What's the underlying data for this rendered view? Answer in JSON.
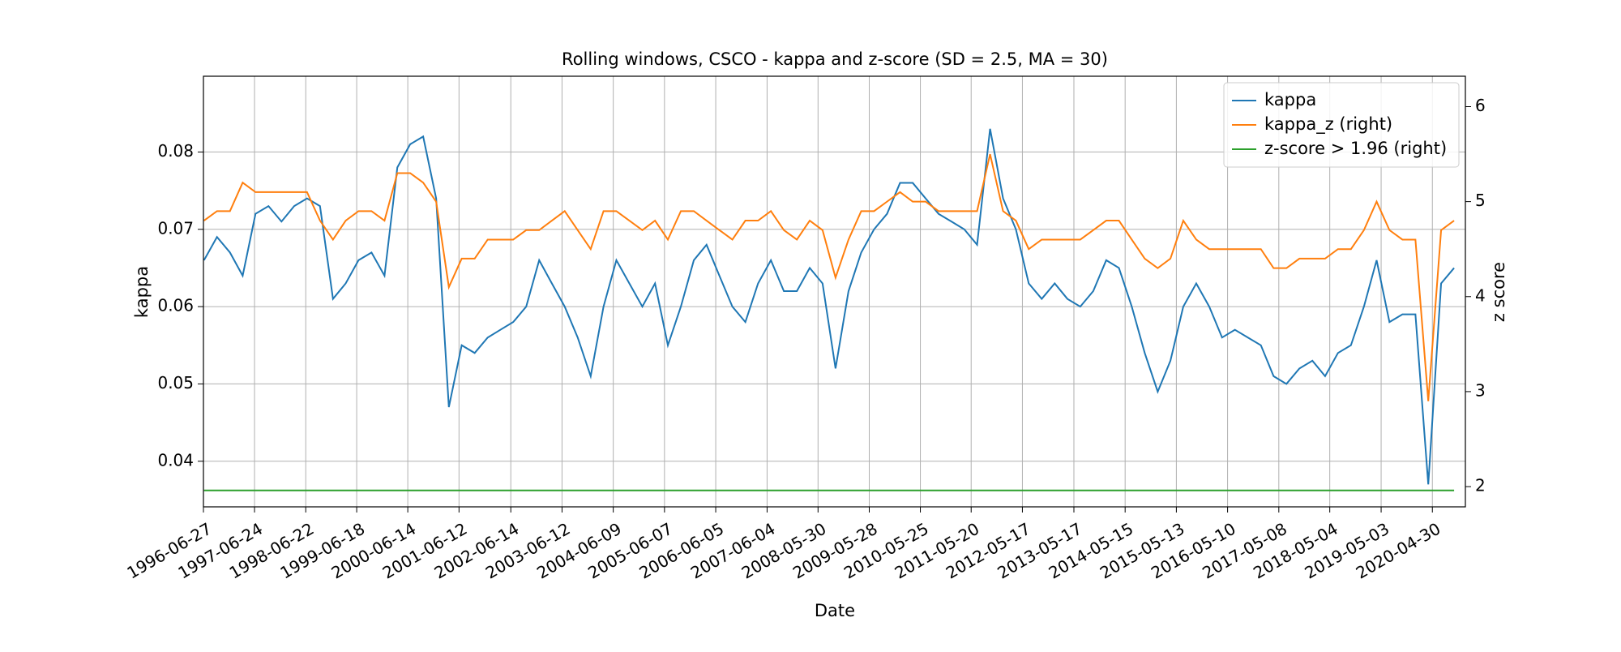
{
  "chart_data": {
    "type": "line",
    "title": "Rolling windows, CSCO - kappa and z-score (SD = 2.5, MA = 30)",
    "xlabel": "Date",
    "ylabel": "kappa",
    "y2label": "z score",
    "grid": true,
    "legend": "upper right",
    "xlim": [
      "1996-06-27",
      "2020-12-20"
    ],
    "xticks": [
      "1996-06-27",
      "1997-06-24",
      "1998-06-22",
      "1999-06-18",
      "2000-06-14",
      "2001-06-12",
      "2002-06-14",
      "2003-06-12",
      "2004-06-09",
      "2005-06-07",
      "2006-06-05",
      "2007-06-04",
      "2008-05-30",
      "2009-05-28",
      "2010-05-25",
      "2011-05-20",
      "2012-05-17",
      "2013-05-17",
      "2014-05-15",
      "2015-05-13",
      "2016-05-10",
      "2017-05-08",
      "2018-05-04",
      "2019-05-03",
      "2020-04-30"
    ],
    "ylim": [
      0.0341,
      0.0898
    ],
    "yticks": [
      0.04,
      0.05,
      0.06,
      0.07,
      0.08
    ],
    "y2lim": [
      1.787,
      6.32
    ],
    "y2ticks": [
      2,
      3,
      4,
      5,
      6
    ],
    "x": [
      "1996-07-01",
      "1996-10-01",
      "1997-01-01",
      "1997-04-01",
      "1997-07-01",
      "1997-10-01",
      "1998-01-01",
      "1998-04-01",
      "1998-07-01",
      "1998-10-01",
      "1999-01-01",
      "1999-04-01",
      "1999-07-01",
      "1999-10-01",
      "2000-01-01",
      "2000-04-01",
      "2000-07-01",
      "2000-10-01",
      "2001-01-01",
      "2001-04-01",
      "2001-07-01",
      "2001-10-01",
      "2002-01-01",
      "2002-04-01",
      "2002-07-01",
      "2002-10-01",
      "2003-01-01",
      "2003-04-01",
      "2003-07-01",
      "2003-10-01",
      "2004-01-01",
      "2004-04-01",
      "2004-07-01",
      "2004-10-01",
      "2005-01-01",
      "2005-04-01",
      "2005-07-01",
      "2005-10-01",
      "2006-01-01",
      "2006-04-01",
      "2006-07-01",
      "2006-10-01",
      "2007-01-01",
      "2007-04-01",
      "2007-07-01",
      "2007-10-01",
      "2008-01-01",
      "2008-04-01",
      "2008-07-01",
      "2008-10-01",
      "2009-01-01",
      "2009-04-01",
      "2009-07-01",
      "2009-10-01",
      "2010-01-01",
      "2010-04-01",
      "2010-07-01",
      "2010-10-01",
      "2011-01-01",
      "2011-04-01",
      "2011-07-01",
      "2011-10-01",
      "2012-01-01",
      "2012-04-01",
      "2012-07-01",
      "2012-10-01",
      "2013-01-01",
      "2013-04-01",
      "2013-07-01",
      "2013-10-01",
      "2014-01-01",
      "2014-04-01",
      "2014-07-01",
      "2014-10-01",
      "2015-01-01",
      "2015-04-01",
      "2015-07-01",
      "2015-10-01",
      "2016-01-01",
      "2016-04-01",
      "2016-07-01",
      "2016-10-01",
      "2017-01-01",
      "2017-04-01",
      "2017-07-01",
      "2017-10-01",
      "2018-01-01",
      "2018-04-01",
      "2018-07-01",
      "2018-10-01",
      "2019-01-01",
      "2019-04-01",
      "2019-07-01",
      "2019-10-01",
      "2020-01-01",
      "2020-04-01",
      "2020-07-01",
      "2020-10-01"
    ],
    "series": [
      {
        "name": "kappa",
        "color": "#1f77b4",
        "axis": "y",
        "values": [
          0.066,
          0.069,
          0.067,
          0.064,
          0.072,
          0.073,
          0.071,
          0.073,
          0.074,
          0.073,
          0.061,
          0.063,
          0.066,
          0.067,
          0.064,
          0.078,
          0.081,
          0.082,
          0.074,
          0.047,
          0.055,
          0.054,
          0.056,
          0.057,
          0.058,
          0.06,
          0.066,
          0.063,
          0.06,
          0.056,
          0.051,
          0.06,
          0.066,
          0.063,
          0.06,
          0.063,
          0.055,
          0.06,
          0.066,
          0.068,
          0.064,
          0.06,
          0.058,
          0.063,
          0.066,
          0.062,
          0.062,
          0.065,
          0.063,
          0.052,
          0.062,
          0.067,
          0.07,
          0.072,
          0.076,
          0.076,
          0.074,
          0.072,
          0.071,
          0.07,
          0.068,
          0.083,
          0.074,
          0.07,
          0.063,
          0.061,
          0.063,
          0.061,
          0.06,
          0.062,
          0.066,
          0.065,
          0.06,
          0.054,
          0.049,
          0.053,
          0.06,
          0.063,
          0.06,
          0.056,
          0.057,
          0.056,
          0.055,
          0.051,
          0.05,
          0.052,
          0.053,
          0.051,
          0.054,
          0.055,
          0.06,
          0.066,
          0.058,
          0.059,
          0.059,
          0.037,
          0.063,
          0.065
        ]
      },
      {
        "name": "kappa_z (right)",
        "color": "#ff7f0e",
        "axis": "y2",
        "values": [
          4.8,
          4.9,
          4.9,
          5.2,
          5.1,
          5.1,
          5.1,
          5.1,
          5.1,
          4.8,
          4.6,
          4.8,
          4.9,
          4.9,
          4.8,
          5.3,
          5.3,
          5.2,
          5.0,
          4.1,
          4.4,
          4.4,
          4.6,
          4.6,
          4.6,
          4.7,
          4.7,
          4.8,
          4.9,
          4.7,
          4.5,
          4.9,
          4.9,
          4.8,
          4.7,
          4.8,
          4.6,
          4.9,
          4.9,
          4.8,
          4.7,
          4.6,
          4.8,
          4.8,
          4.9,
          4.7,
          4.6,
          4.8,
          4.7,
          4.2,
          4.6,
          4.9,
          4.9,
          5.0,
          5.1,
          5.0,
          5.0,
          4.9,
          4.9,
          4.9,
          4.9,
          5.5,
          4.9,
          4.8,
          4.5,
          4.6,
          4.6,
          4.6,
          4.6,
          4.7,
          4.8,
          4.8,
          4.6,
          4.4,
          4.3,
          4.4,
          4.8,
          4.6,
          4.5,
          4.5,
          4.5,
          4.5,
          4.5,
          4.3,
          4.3,
          4.4,
          4.4,
          4.4,
          4.5,
          4.5,
          4.7,
          5.0,
          4.7,
          4.6,
          4.6,
          2.9,
          4.7,
          4.8
        ]
      },
      {
        "name": "z-score > 1.96 (right)",
        "color": "#2ca02c",
        "axis": "y2",
        "values": [
          1.96,
          1.96,
          1.96,
          1.96,
          1.96,
          1.96,
          1.96,
          1.96,
          1.96,
          1.96,
          1.96,
          1.96,
          1.96,
          1.96,
          1.96,
          1.96,
          1.96,
          1.96,
          1.96,
          1.96,
          1.96,
          1.96,
          1.96,
          1.96,
          1.96,
          1.96,
          1.96,
          1.96,
          1.96,
          1.96,
          1.96,
          1.96,
          1.96,
          1.96,
          1.96,
          1.96,
          1.96,
          1.96,
          1.96,
          1.96,
          1.96,
          1.96,
          1.96,
          1.96,
          1.96,
          1.96,
          1.96,
          1.96,
          1.96,
          1.96,
          1.96,
          1.96,
          1.96,
          1.96,
          1.96,
          1.96,
          1.96,
          1.96,
          1.96,
          1.96,
          1.96,
          1.96,
          1.96,
          1.96,
          1.96,
          1.96,
          1.96,
          1.96,
          1.96,
          1.96,
          1.96,
          1.96,
          1.96,
          1.96,
          1.96,
          1.96,
          1.96,
          1.96,
          1.96,
          1.96,
          1.96,
          1.96,
          1.96,
          1.96,
          1.96,
          1.96,
          1.96,
          1.96,
          1.96,
          1.96,
          1.96,
          1.96,
          1.96,
          1.96,
          1.96,
          1.96,
          1.96,
          1.96
        ]
      }
    ]
  }
}
